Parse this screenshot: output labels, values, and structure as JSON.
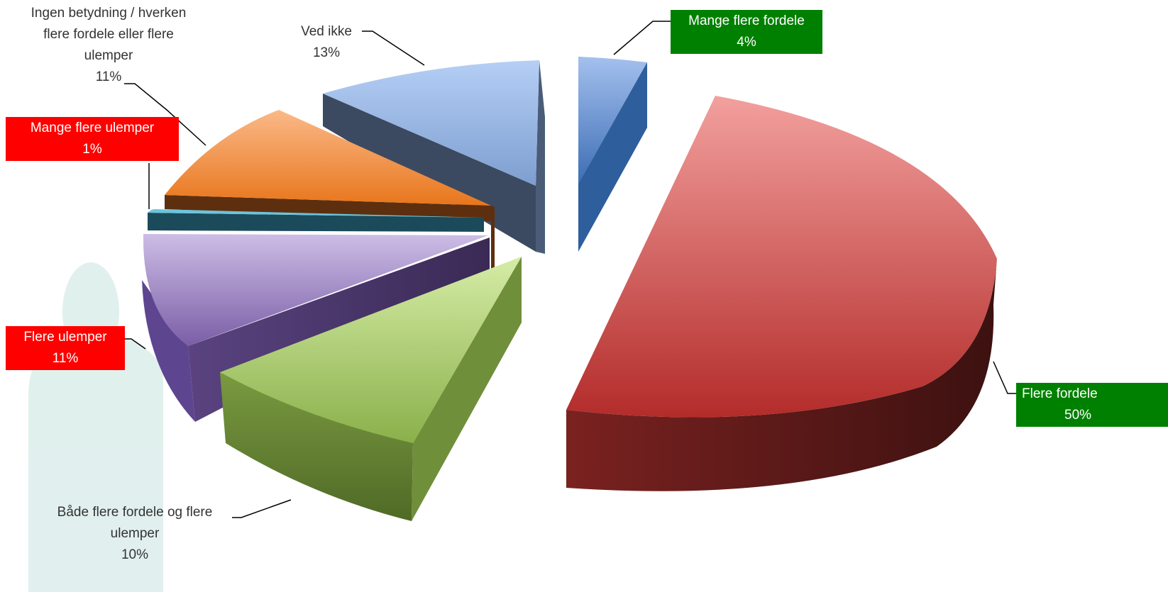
{
  "chart_data": {
    "type": "pie",
    "style": "3d-exploded",
    "slices": [
      {
        "label": "Mange flere fordele",
        "percent_label": "4%",
        "value": 4,
        "color": "#4f81bd",
        "label_box_color": "#008000"
      },
      {
        "label": "Flere fordele",
        "percent_label": "50%",
        "value": 50,
        "color": "#c0504d",
        "label_box_color": "#008000"
      },
      {
        "label": "Både flere fordele og flere ulemper",
        "percent_label": "10%",
        "value": 10,
        "color": "#9bbb59",
        "label_box_color": ""
      },
      {
        "label": "Flere ulemper",
        "percent_label": "11%",
        "value": 11,
        "color": "#8064a2",
        "label_box_color": "#ff0000"
      },
      {
        "label": "Mange flere ulemper",
        "percent_label": "1%",
        "value": 1,
        "color": "#4bacc6",
        "label_box_color": "#ff0000"
      },
      {
        "label": "Ingen betydning / hverken flere fordele eller flere ulemper",
        "percent_label": "11%",
        "value": 11,
        "color": "#f79646",
        "label_box_color": ""
      },
      {
        "label": "Ved ikke",
        "percent_label": "13%",
        "value": 13,
        "color": "#95b3d7",
        "label_box_color": ""
      }
    ],
    "labels": {
      "mange_flere_fordele": {
        "line1": "Mange flere fordele",
        "pct": "4%"
      },
      "flere_fordele": {
        "line1": "Flere fordele",
        "pct": "50%"
      },
      "baade": {
        "line1": "Både flere fordele og flere",
        "line2": "ulemper",
        "pct": "10%"
      },
      "flere_ulemper": {
        "line1": "Flere ulemper",
        "pct": "11%"
      },
      "mange_flere_ulemper": {
        "line1": "Mange flere ulemper",
        "pct": "1%"
      },
      "ingen": {
        "line1": "Ingen betydning / hverken",
        "line2": "flere fordele eller flere",
        "line3": "ulemper",
        "pct": "11%"
      },
      "ved_ikke": {
        "line1": "Ved ikke",
        "pct": "13%"
      }
    }
  }
}
